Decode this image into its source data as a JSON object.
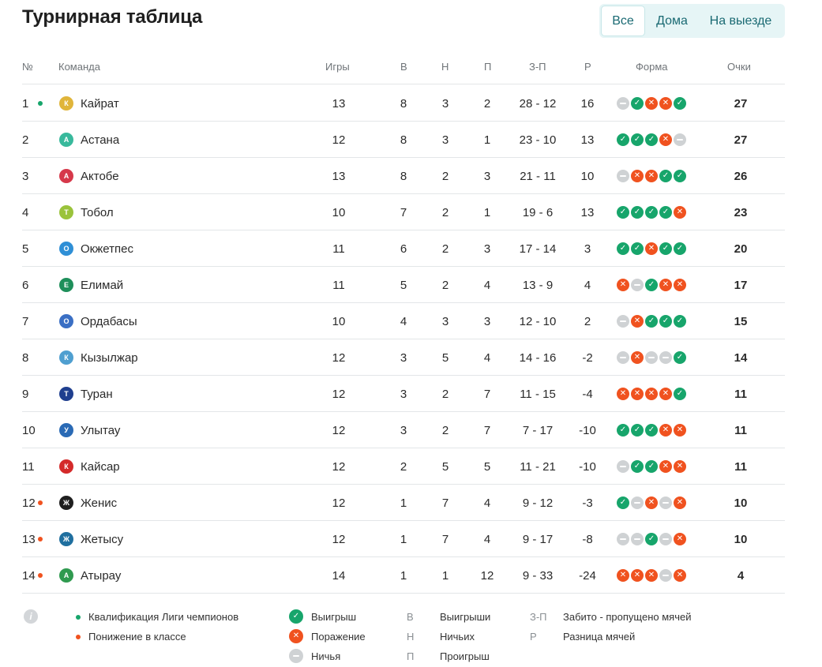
{
  "title": "Турнирная таблица",
  "tabs": [
    "Все",
    "Дома",
    "На выезде"
  ],
  "active_tab": "Все",
  "headers": {
    "pos": "№",
    "team": "Команда",
    "games": "Игры",
    "w": "В",
    "d": "Н",
    "l": "П",
    "goals": "З-П",
    "diff": "Р",
    "form": "Форма",
    "points": "Очки"
  },
  "colors": {
    "accent": "#1a6a73",
    "win": "#17a56b",
    "loss": "#f0521f",
    "draw": "#cfd2d4",
    "qualification": "#17a56b",
    "relegation": "#f0521f"
  },
  "rows": [
    {
      "pos": "1",
      "zone": "qualification",
      "team": "Кайрат",
      "logo_color": "#e0b53a",
      "logo_text": "К",
      "games": "13",
      "w": "8",
      "d": "3",
      "l": "2",
      "goals": "28 - 12",
      "diff": "16",
      "form": [
        "D",
        "W",
        "L",
        "L",
        "W"
      ],
      "points": "27"
    },
    {
      "pos": "2",
      "zone": "",
      "team": "Астана",
      "logo_color": "#38b99c",
      "logo_text": "А",
      "games": "12",
      "w": "8",
      "d": "3",
      "l": "1",
      "goals": "23 - 10",
      "diff": "13",
      "form": [
        "W",
        "W",
        "W",
        "L",
        "D"
      ],
      "points": "27"
    },
    {
      "pos": "3",
      "zone": "",
      "team": "Актобе",
      "logo_color": "#d6384a",
      "logo_text": "А",
      "games": "13",
      "w": "8",
      "d": "2",
      "l": "3",
      "goals": "21 - 11",
      "diff": "10",
      "form": [
        "D",
        "L",
        "L",
        "W",
        "W"
      ],
      "points": "26"
    },
    {
      "pos": "4",
      "zone": "",
      "team": "Тобол",
      "logo_color": "#9ac33b",
      "logo_text": "Т",
      "games": "10",
      "w": "7",
      "d": "2",
      "l": "1",
      "goals": "19 - 6",
      "diff": "13",
      "form": [
        "W",
        "W",
        "W",
        "W",
        "L"
      ],
      "points": "23"
    },
    {
      "pos": "5",
      "zone": "",
      "team": "Окжетпес",
      "logo_color": "#2f8fd6",
      "logo_text": "О",
      "games": "11",
      "w": "6",
      "d": "2",
      "l": "3",
      "goals": "17 - 14",
      "diff": "3",
      "form": [
        "W",
        "W",
        "L",
        "W",
        "W"
      ],
      "points": "20"
    },
    {
      "pos": "6",
      "zone": "",
      "team": "Елимай",
      "logo_color": "#1e8f5a",
      "logo_text": "Е",
      "games": "11",
      "w": "5",
      "d": "2",
      "l": "4",
      "goals": "13 - 9",
      "diff": "4",
      "form": [
        "L",
        "D",
        "W",
        "L",
        "L"
      ],
      "points": "17"
    },
    {
      "pos": "7",
      "zone": "",
      "team": "Ордабасы",
      "logo_color": "#3a6fc4",
      "logo_text": "О",
      "games": "10",
      "w": "4",
      "d": "3",
      "l": "3",
      "goals": "12 - 10",
      "diff": "2",
      "form": [
        "D",
        "L",
        "W",
        "W",
        "W"
      ],
      "points": "15"
    },
    {
      "pos": "8",
      "zone": "",
      "team": "Кызылжар",
      "logo_color": "#4f9fd0",
      "logo_text": "К",
      "games": "12",
      "w": "3",
      "d": "5",
      "l": "4",
      "goals": "14 - 16",
      "diff": "-2",
      "form": [
        "D",
        "L",
        "D",
        "D",
        "W"
      ],
      "points": "14"
    },
    {
      "pos": "9",
      "zone": "",
      "team": "Туран",
      "logo_color": "#1f3f8f",
      "logo_text": "Т",
      "games": "12",
      "w": "3",
      "d": "2",
      "l": "7",
      "goals": "11 - 15",
      "diff": "-4",
      "form": [
        "L",
        "L",
        "L",
        "L",
        "W"
      ],
      "points": "11"
    },
    {
      "pos": "10",
      "zone": "",
      "team": "Улытау",
      "logo_color": "#2a6ab5",
      "logo_text": "У",
      "games": "12",
      "w": "3",
      "d": "2",
      "l": "7",
      "goals": "7 - 17",
      "diff": "-10",
      "form": [
        "W",
        "W",
        "W",
        "L",
        "L"
      ],
      "points": "11"
    },
    {
      "pos": "11",
      "zone": "",
      "team": "Кайсар",
      "logo_color": "#d42a2a",
      "logo_text": "К",
      "games": "12",
      "w": "2",
      "d": "5",
      "l": "5",
      "goals": "11 - 21",
      "diff": "-10",
      "form": [
        "D",
        "W",
        "W",
        "L",
        "L"
      ],
      "points": "11"
    },
    {
      "pos": "12",
      "zone": "relegation",
      "team": "Женис",
      "logo_color": "#1f1f1f",
      "logo_text": "Ж",
      "games": "12",
      "w": "1",
      "d": "7",
      "l": "4",
      "goals": "9 - 12",
      "diff": "-3",
      "form": [
        "W",
        "D",
        "L",
        "D",
        "L"
      ],
      "points": "10"
    },
    {
      "pos": "13",
      "zone": "relegation",
      "team": "Жетысу",
      "logo_color": "#1f6f9f",
      "logo_text": "Ж",
      "games": "12",
      "w": "1",
      "d": "7",
      "l": "4",
      "goals": "9 - 17",
      "diff": "-8",
      "form": [
        "D",
        "D",
        "W",
        "D",
        "L"
      ],
      "points": "10"
    },
    {
      "pos": "14",
      "zone": "relegation",
      "team": "Атырау",
      "logo_color": "#2f9a4f",
      "logo_text": "А",
      "games": "14",
      "w": "1",
      "d": "1",
      "l": "12",
      "goals": "9 - 33",
      "diff": "-24",
      "form": [
        "L",
        "L",
        "L",
        "D",
        "L"
      ],
      "points": "4"
    }
  ],
  "legend": {
    "info_icon": "info-icon",
    "zones": [
      {
        "key": "qualification",
        "label": "Квалификация Лиги чемпионов"
      },
      {
        "key": "relegation",
        "label": "Понижение в классе"
      }
    ],
    "form": [
      {
        "key": "W",
        "label": "Выигрыш"
      },
      {
        "key": "L",
        "label": "Поражение"
      },
      {
        "key": "D",
        "label": "Ничья"
      }
    ],
    "abbr1": [
      {
        "abbr": "В",
        "label": "Выигрыши"
      },
      {
        "abbr": "Н",
        "label": "Ничьих"
      },
      {
        "abbr": "П",
        "label": "Проигрыш"
      }
    ],
    "abbr2": [
      {
        "abbr": "З-П",
        "label": "Забито - пропущено мячей"
      },
      {
        "abbr": "Р",
        "label": "Разница мячей"
      }
    ]
  }
}
